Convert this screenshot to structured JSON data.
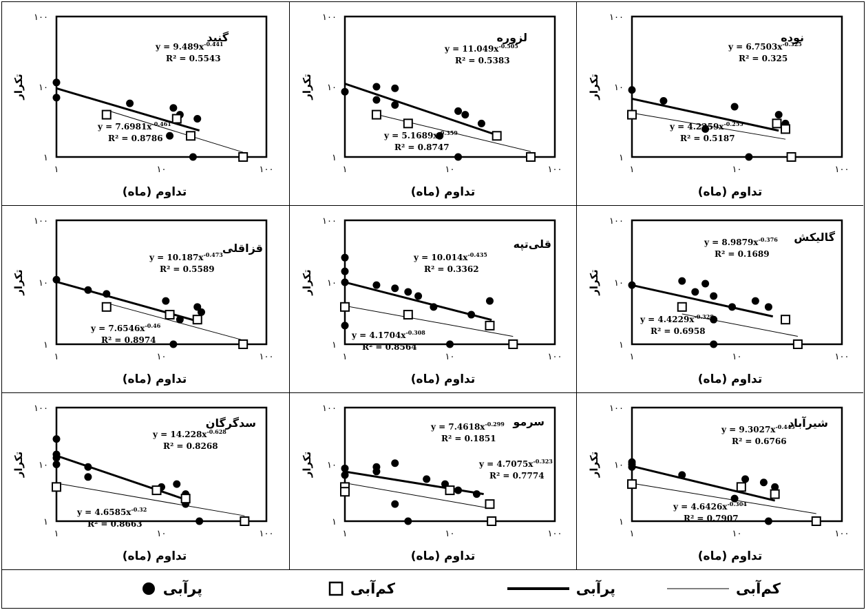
{
  "figure": {
    "legend": [
      {
        "label": "پرآبی",
        "marker": "dot"
      },
      {
        "label": "کم‌آبی",
        "marker": "square"
      },
      {
        "label": "پرآبی",
        "marker": "thick-line"
      },
      {
        "label": "کم‌آبی",
        "marker": "thin-line"
      }
    ]
  },
  "chart_data": [
    {
      "type": "scatter",
      "title": "نوده",
      "xlabel": "تداوم (ماه)",
      "ylabel": "تکرار",
      "xscale": "log",
      "yscale": "log",
      "xlim": [
        1,
        100
      ],
      "ylim": [
        1,
        100
      ],
      "xticks": [
        "۱",
        "۱۰",
        "۱۰۰"
      ],
      "yticks": [
        "۱",
        "۱۰",
        "۱۰۰"
      ],
      "series": [
        {
          "name": "پرآبی",
          "marker": "dot",
          "points": [
            [
              1,
              9
            ],
            [
              2,
              6.3
            ],
            [
              5,
              2.5
            ],
            [
              9.5,
              5.2
            ],
            [
              13,
              1
            ],
            [
              25,
              4
            ],
            [
              29,
              3
            ]
          ],
          "trend": {
            "equation": "y = 6.7503x-0.325",
            "r2": "R² = 0.325",
            "x": [
              1,
              25
            ]
          }
        },
        {
          "name": "کم‌آبی",
          "marker": "square",
          "points": [
            [
              1,
              4
            ],
            [
              24,
              3
            ],
            [
              29,
              2.5
            ],
            [
              33,
              1
            ]
          ],
          "trend": {
            "equation": "y = 4.2259x-0.255",
            "r2": "R² = 0.5187",
            "x": [
              1,
              29
            ]
          }
        }
      ]
    },
    {
      "type": "scatter",
      "title": "لزوره",
      "xlabel": "تداوم (ماه)",
      "ylabel": "تکرار",
      "xscale": "log",
      "yscale": "log",
      "xlim": [
        1,
        100
      ],
      "ylim": [
        1,
        100
      ],
      "xticks": [
        "۱",
        "۱۰",
        "۱۰۰"
      ],
      "yticks": [
        "۱",
        "۱۰",
        "۱۰۰"
      ],
      "series": [
        {
          "name": "پرآبی",
          "marker": "dot",
          "points": [
            [
              1,
              8.5
            ],
            [
              2,
              10
            ],
            [
              2,
              6.5
            ],
            [
              3,
              9.5
            ],
            [
              3,
              5.5
            ],
            [
              8,
              2
            ],
            [
              12,
              4.5
            ],
            [
              14,
              4
            ],
            [
              20,
              3
            ],
            [
              12,
              1
            ]
          ],
          "trend": {
            "equation": "y = 11.049x-0.505",
            "r2": "R² = 0.5383",
            "x": [
              1,
              28
            ]
          }
        },
        {
          "name": "کم‌آبی",
          "marker": "square",
          "points": [
            [
              2,
              4
            ],
            [
              4,
              3
            ],
            [
              28,
              2
            ],
            [
              59,
              1
            ]
          ],
          "trend": {
            "equation": "y = 5.1689x-0.359",
            "r2": "R² = 0.8747",
            "x": [
              2,
              59
            ]
          }
        }
      ]
    },
    {
      "type": "scatter",
      "title": "گنبد",
      "xlabel": "تداوم (ماه)",
      "ylabel": "تکرار",
      "xscale": "log",
      "yscale": "log",
      "xlim": [
        1,
        100
      ],
      "ylim": [
        1,
        100
      ],
      "xticks": [
        "۱",
        "۱۰",
        "۱۰۰"
      ],
      "yticks": [
        "۱",
        "۱۰",
        "۱۰۰"
      ],
      "series": [
        {
          "name": "پرآبی",
          "marker": "dot",
          "points": [
            [
              1,
              11.5
            ],
            [
              1,
              7
            ],
            [
              5,
              5.8
            ],
            [
              12,
              2
            ],
            [
              13,
              5
            ],
            [
              15,
              4
            ],
            [
              20,
              1
            ],
            [
              22,
              3.5
            ]
          ],
          "trend": {
            "equation": "y = 9.489x-0.441",
            "r2": "R² = 0.5543",
            "x": [
              1,
              23
            ]
          }
        },
        {
          "name": "کم‌آبی",
          "marker": "square",
          "points": [
            [
              3,
              4
            ],
            [
              14,
              3.5
            ],
            [
              19,
              2
            ],
            [
              60,
              1
            ]
          ],
          "trend": {
            "equation": "y = 7.6981x-0.461",
            "r2": "R² = 0.8786",
            "x": [
              3,
              60
            ]
          }
        }
      ]
    },
    {
      "type": "scatter",
      "title": "گالیکش",
      "xlabel": "تداوم (ماه)",
      "ylabel": "تکرار",
      "xscale": "log",
      "yscale": "log",
      "xlim": [
        1,
        100
      ],
      "ylim": [
        1,
        100
      ],
      "xticks": [
        "۱",
        "۱۰",
        "۱۰۰"
      ],
      "yticks": [
        "۱",
        "۱۰",
        "۱۰۰"
      ],
      "series": [
        {
          "name": "پرآبی",
          "marker": "dot",
          "points": [
            [
              1,
              9
            ],
            [
              3,
              10.5
            ],
            [
              4,
              7
            ],
            [
              5,
              9.5
            ],
            [
              6,
              6
            ],
            [
              6,
              2.5
            ],
            [
              9,
              4
            ],
            [
              15,
              5
            ],
            [
              20,
              4
            ],
            [
              6,
              1
            ]
          ],
          "trend": {
            "equation": "y = 8.9879x-0.376",
            "r2": "R² = 0.1689",
            "x": [
              1,
              22
            ]
          }
        },
        {
          "name": "کم‌آبی",
          "marker": "square",
          "points": [
            [
              3,
              4
            ],
            [
              29,
              2.5
            ],
            [
              38,
              1
            ]
          ],
          "trend": {
            "equation": "y = 4.4229x-0.328",
            "r2": "R² = 0.6958",
            "x": [
              3,
              38
            ]
          }
        }
      ]
    },
    {
      "type": "scatter",
      "title": "قلی‌تپه",
      "xlabel": "تداوم (ماه)",
      "ylabel": "تکرار",
      "xscale": "log",
      "yscale": "log",
      "xlim": [
        1,
        100
      ],
      "ylim": [
        1,
        100
      ],
      "xticks": [
        "۱",
        "۱۰",
        "۱۰۰"
      ],
      "yticks": [
        "۱",
        "۱۰",
        "۱۰۰"
      ],
      "series": [
        {
          "name": "پرآبی",
          "marker": "dot",
          "points": [
            [
              1,
              25
            ],
            [
              1,
              15
            ],
            [
              1,
              10
            ],
            [
              1,
              2
            ],
            [
              2,
              9
            ],
            [
              3,
              8
            ],
            [
              4,
              7
            ],
            [
              5,
              6
            ],
            [
              7,
              4
            ],
            [
              10,
              1
            ],
            [
              16,
              3
            ],
            [
              24,
              5
            ]
          ],
          "trend": {
            "equation": "y = 10.014x-0.435",
            "r2": "R² = 0.3362",
            "x": [
              1,
              25
            ]
          }
        },
        {
          "name": "کم‌آبی",
          "marker": "square",
          "points": [
            [
              1,
              4
            ],
            [
              4,
              3
            ],
            [
              24,
              2
            ],
            [
              40,
              1
            ]
          ],
          "trend": {
            "equation": "y = 4.1704x-0.308",
            "r2": "R² = 0.8564",
            "x": [
              1,
              40
            ]
          }
        }
      ]
    },
    {
      "type": "scatter",
      "title": "قزاقلی",
      "xlabel": "تداوم (ماه)",
      "ylabel": "تکرار",
      "xscale": "log",
      "yscale": "log",
      "xlim": [
        1,
        100
      ],
      "ylim": [
        1,
        100
      ],
      "xticks": [
        "۱",
        "۱۰",
        "۱۰۰"
      ],
      "yticks": [
        "۱",
        "۱۰",
        "۱۰۰"
      ],
      "series": [
        {
          "name": "پرآبی",
          "marker": "dot",
          "points": [
            [
              1,
              11
            ],
            [
              2,
              7.5
            ],
            [
              3,
              6.5
            ],
            [
              11,
              5
            ],
            [
              13,
              1
            ],
            [
              15,
              2.5
            ],
            [
              22,
              4
            ],
            [
              24,
              3.3
            ]
          ],
          "trend": {
            "equation": "y = 10.187x-0.473",
            "r2": "R² = 0.5589",
            "x": [
              1,
              24
            ]
          }
        },
        {
          "name": "کم‌آبی",
          "marker": "square",
          "points": [
            [
              3,
              4
            ],
            [
              12,
              3
            ],
            [
              22,
              2.5
            ],
            [
              60,
              1
            ]
          ],
          "trend": {
            "equation": "y = 7.6546x-0.46",
            "r2": "R² = 0.8974",
            "x": [
              3,
              60
            ]
          }
        }
      ]
    },
    {
      "type": "scatter",
      "title": "شیرآباد",
      "xlabel": "تداوم (ماه)",
      "ylabel": "تکرار",
      "xscale": "log",
      "yscale": "log",
      "xlim": [
        1,
        100
      ],
      "ylim": [
        1,
        100
      ],
      "xticks": [
        "۱",
        "۱۰",
        "۱۰۰"
      ],
      "yticks": [
        "۱",
        "۱۰",
        "۱۰۰"
      ],
      "series": [
        {
          "name": "پرآبی",
          "marker": "dot",
          "points": [
            [
              1,
              11
            ],
            [
              1,
              10
            ],
            [
              1,
              9
            ],
            [
              3,
              6.5
            ],
            [
              9.5,
              2.5
            ],
            [
              12,
              5.5
            ],
            [
              18,
              4.8
            ],
            [
              23,
              4
            ],
            [
              20,
              1
            ]
          ],
          "trend": {
            "equation": "y = 9.3027x-0.445",
            "r2": "R² = 0.6766",
            "x": [
              1,
              23
            ]
          }
        },
        {
          "name": "کم‌آبی",
          "marker": "square",
          "points": [
            [
              1,
              4.5
            ],
            [
              11,
              4
            ],
            [
              23,
              3
            ],
            [
              57,
              1
            ]
          ],
          "trend": {
            "equation": "y = 4.6426x-0.304",
            "r2": "R² = 0.7907",
            "x": [
              1,
              57
            ]
          }
        }
      ]
    },
    {
      "type": "scatter",
      "title": "سرمو",
      "xlabel": "تداوم (ماه)",
      "ylabel": "تکرار",
      "xscale": "log",
      "yscale": "log",
      "xlim": [
        1,
        100
      ],
      "ylim": [
        1,
        100
      ],
      "xticks": [
        "۱",
        "۱۰",
        "۱۰۰"
      ],
      "yticks": [
        "۱",
        "۱۰",
        "۱۰۰"
      ],
      "series": [
        {
          "name": "پرآبی",
          "marker": "dot",
          "points": [
            [
              1,
              8.5
            ],
            [
              1,
              6.5
            ],
            [
              2,
              9
            ],
            [
              2,
              7.5
            ],
            [
              3,
              10.5
            ],
            [
              3,
              2
            ],
            [
              4,
              1
            ],
            [
              6,
              5.5
            ],
            [
              9,
              4.5
            ],
            [
              12,
              3.5
            ],
            [
              18,
              3
            ]
          ],
          "trend": {
            "equation": "y = 7.4618x-0.299",
            "r2": "R² = 0.1851",
            "x": [
              1,
              21
            ]
          }
        },
        {
          "name": "کم‌آبی",
          "marker": "square",
          "points": [
            [
              1,
              4
            ],
            [
              1,
              3.3
            ],
            [
              10,
              3.5
            ],
            [
              24,
              2
            ],
            [
              25,
              1
            ]
          ],
          "trend": {
            "equation": "y = 4.7075x-0.323",
            "r2": "R² = 0.7774",
            "x": [
              1,
              25
            ]
          }
        }
      ]
    },
    {
      "type": "scatter",
      "title": "سدگرگان",
      "xlabel": "تداوم (ماه)",
      "ylabel": "تکرار",
      "xscale": "log",
      "yscale": "log",
      "xlim": [
        1,
        100
      ],
      "ylim": [
        1,
        100
      ],
      "xticks": [
        "۱",
        "۱۰",
        "۱۰۰"
      ],
      "yticks": [
        "۱",
        "۱۰",
        "۱۰۰"
      ],
      "series": [
        {
          "name": "پرآبی",
          "marker": "dot",
          "points": [
            [
              1,
              28
            ],
            [
              1,
              15
            ],
            [
              1,
              13
            ],
            [
              1,
              10
            ],
            [
              2,
              9
            ],
            [
              2,
              6
            ],
            [
              10,
              4
            ],
            [
              14,
              4.5
            ],
            [
              17,
              3
            ],
            [
              17,
              2
            ],
            [
              23,
              1
            ]
          ],
          "trend": {
            "equation": "y = 14.228x-0.628",
            "r2": "R² = 0.8268",
            "x": [
              1,
              17
            ]
          }
        },
        {
          "name": "کم‌آبی",
          "marker": "square",
          "points": [
            [
              1,
              4
            ],
            [
              9,
              3.5
            ],
            [
              17,
              2.5
            ],
            [
              62,
              1
            ]
          ],
          "trend": {
            "equation": "y = 4.6585x-0.32",
            "r2": "R² = 0.8663",
            "x": [
              1,
              62
            ]
          }
        }
      ]
    }
  ]
}
